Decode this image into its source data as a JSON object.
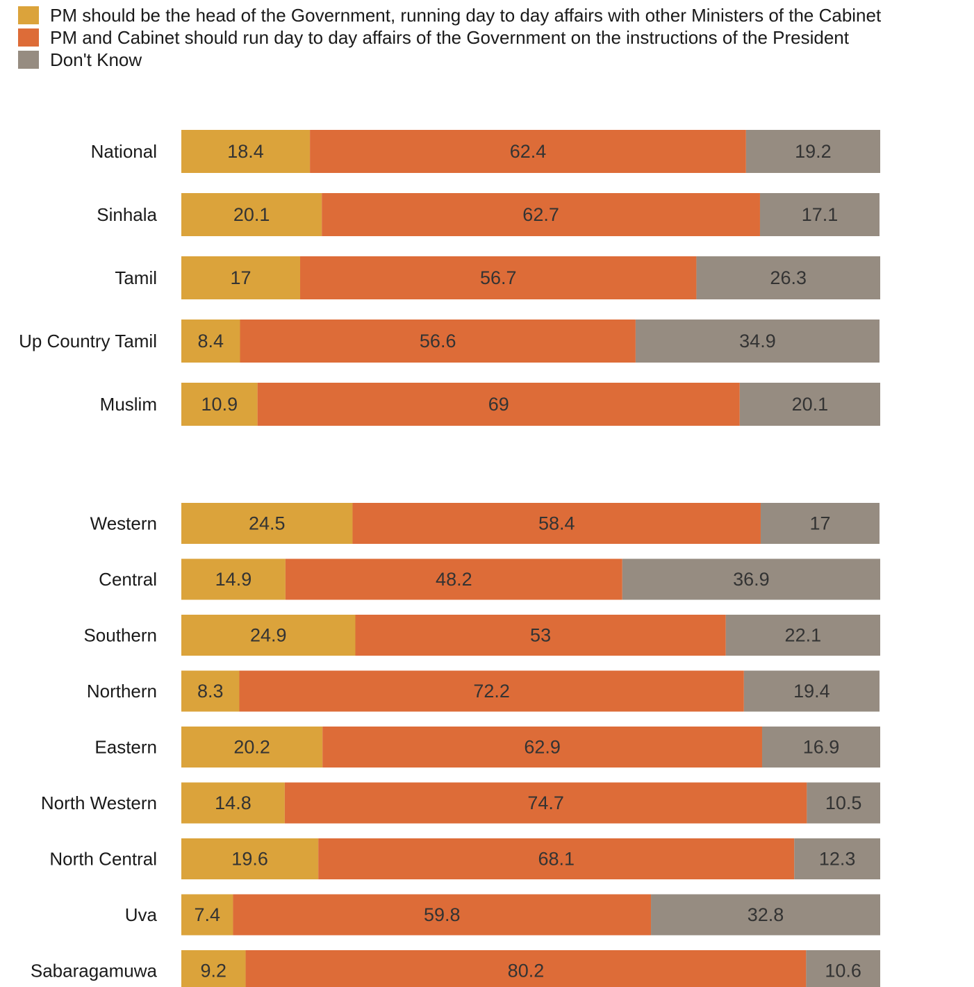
{
  "colors": {
    "pm_head": "#DBA33B",
    "pm_cabinet_president": "#DD6C38",
    "dont_know": "#968C81"
  },
  "legend": [
    {
      "label": "PM should be the head of the Government, running day to day affairs with other Ministers of the Cabinet",
      "color": "#DBA33B"
    },
    {
      "label": "PM and Cabinet should run day to day affairs of the Government on the instructions of the President",
      "color": "#DD6C38"
    },
    {
      "label": "Don't Know",
      "color": "#968C81"
    }
  ],
  "chart_data": {
    "type": "bar",
    "orientation": "horizontal",
    "stacked": true,
    "groups": [
      {
        "categories": [
          "National",
          "Sinhala",
          "Tamil",
          "Up Country Tamil",
          "Muslim"
        ],
        "series": [
          {
            "name": "PM should be the head of the Government, running day to day affairs with other Ministers of the Cabinet",
            "values": [
              18.4,
              20.1,
              17,
              8.4,
              10.9
            ]
          },
          {
            "name": "PM and Cabinet should run day to day affairs of the Government on the instructions of the President",
            "values": [
              62.4,
              62.7,
              56.7,
              56.6,
              69
            ]
          },
          {
            "name": "Don't Know",
            "values": [
              19.2,
              17.1,
              26.3,
              34.9,
              20.1
            ]
          }
        ]
      },
      {
        "categories": [
          "Western",
          "Central",
          "Southern",
          "Northern",
          "Eastern",
          "North Western",
          "North Central",
          "Uva",
          "Sabaragamuwa"
        ],
        "series": [
          {
            "name": "PM should be the head of the Government, running day to day affairs with other Ministers of the Cabinet",
            "values": [
              24.5,
              14.9,
              24.9,
              8.3,
              20.2,
              14.8,
              19.6,
              7.4,
              9.2
            ]
          },
          {
            "name": "PM and Cabinet should run day to day affairs of the Government on the instructions of the President",
            "values": [
              58.4,
              48.2,
              53,
              72.2,
              62.9,
              74.7,
              68.1,
              59.8,
              80.2
            ]
          },
          {
            "name": "Don't Know",
            "values": [
              17,
              36.9,
              22.1,
              19.4,
              16.9,
              10.5,
              12.3,
              32.8,
              10.6
            ]
          }
        ]
      }
    ],
    "xlim": [
      0,
      100
    ],
    "grid": false,
    "legend_position": "top-left"
  }
}
